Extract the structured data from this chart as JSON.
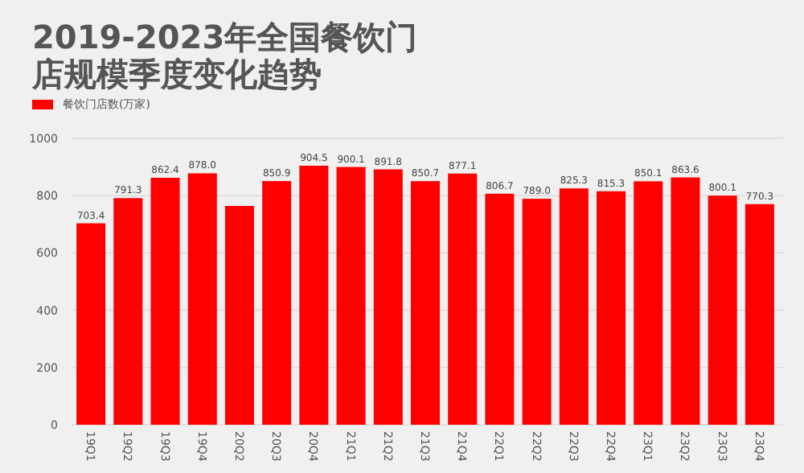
{
  "chart_data": {
    "type": "bar",
    "title": "2019-2023年全国餐饮门店规模季度变化趋势",
    "categories": [
      "19Q1",
      "19Q2",
      "19Q3",
      "19Q4",
      "20Q2",
      "20Q3",
      "20Q4",
      "21Q1",
      "21Q2",
      "21Q3",
      "21Q4",
      "22Q1",
      "22Q2",
      "22Q3",
      "22Q4",
      "23Q1",
      "23Q2",
      "23Q3",
      "23Q4"
    ],
    "series": [
      {
        "name": "餐饮门店数(万家)",
        "color": "#ff0000",
        "values": [
          703.4,
          791.3,
          862.4,
          878.0,
          764,
          850.9,
          904.5,
          900.1,
          891.8,
          850.7,
          877.1,
          806.7,
          789.0,
          825.3,
          815.3,
          850.1,
          863.6,
          800.1,
          770.3
        ],
        "value_labels": [
          "703.4",
          "791.3",
          "862.4",
          "878.0",
          null,
          "850.9",
          "904.5",
          "900.1",
          "891.8",
          "850.7",
          "877.1",
          "806.7",
          "789.0",
          "825.3",
          "815.3",
          "850.1",
          "863.6",
          "800.1",
          "770.3"
        ]
      }
    ],
    "ylim": [
      0,
      1000
    ],
    "yticks": [
      0,
      200,
      400,
      600,
      800,
      1000
    ],
    "grid": "y",
    "legend": "top left"
  }
}
